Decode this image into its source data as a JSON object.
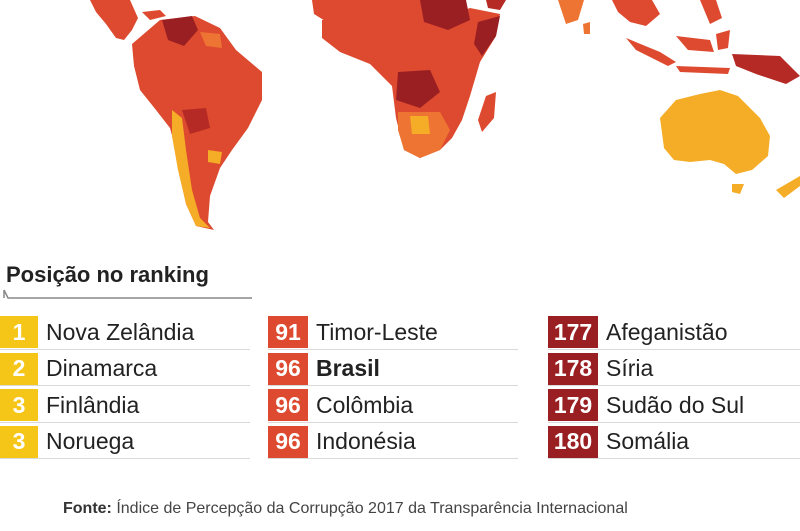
{
  "legend": {
    "title": "Posição no ranking",
    "columns": [
      {
        "items": [
          {
            "rank": "1",
            "name": "Nova Zelândia",
            "color": "#f5c518"
          },
          {
            "rank": "2",
            "name": "Dinamarca",
            "color": "#f5c518"
          },
          {
            "rank": "3",
            "name": "Finlândia",
            "color": "#f5c518"
          },
          {
            "rank": "3",
            "name": "Noruega",
            "color": "#f5c518"
          }
        ]
      },
      {
        "items": [
          {
            "rank": "91",
            "name": "Timor-Leste",
            "color": "#de4a2f"
          },
          {
            "rank": "96",
            "name": "Brasil",
            "color": "#de4a2f",
            "bold": true
          },
          {
            "rank": "96",
            "name": "Colômbia",
            "color": "#de4a2f"
          },
          {
            "rank": "96",
            "name": "Indonésia",
            "color": "#de4a2f"
          }
        ]
      },
      {
        "items": [
          {
            "rank": "177",
            "name": "Afeganistão",
            "color": "#9a1f22"
          },
          {
            "rank": "178",
            "name": "Síria",
            "color": "#9a1f22"
          },
          {
            "rank": "179",
            "name": "Sudão do Sul",
            "color": "#9a1f22"
          },
          {
            "rank": "180",
            "name": "Somália",
            "color": "#9a1f22"
          }
        ]
      }
    ]
  },
  "source": {
    "label": "Fonte:",
    "text": "Índice de Percepção da Corrupção 2017 da Transparência Internacional"
  },
  "map_colors": {
    "light": "#f5ac27",
    "orange": "#ee7433",
    "red": "#de4a2f",
    "dark_red": "#b52a25",
    "darkest": "#8c1a20"
  }
}
